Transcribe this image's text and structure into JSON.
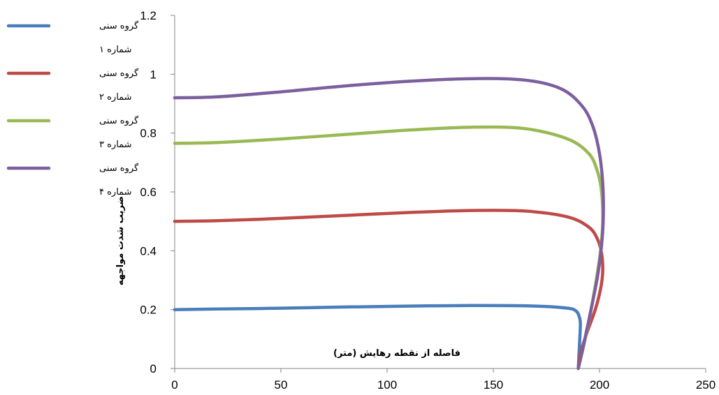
{
  "chart_data": {
    "type": "line",
    "xlabel": "فاصله از نقطه رهایش (متر)",
    "ylabel": "ضریب شدت مواجهه",
    "xlim": [
      0,
      250
    ],
    "ylim": [
      0,
      1.2
    ],
    "x_ticks": [
      0,
      50,
      100,
      150,
      200,
      250
    ],
    "y_ticks": [
      0,
      0.2,
      0.4,
      0.6,
      0.8,
      1,
      1.2
    ],
    "y_tick_labels": [
      "0",
      "0.2",
      "0.4",
      "0.6",
      "0.8",
      "1",
      "1.2"
    ],
    "legend_position": "left",
    "grid": false,
    "series": [
      {
        "name": "گروه سنی شماره ۱",
        "name_lines": [
          "گروه سنی",
          "شماره ۱"
        ],
        "color": "#4a7ebb",
        "x": [
          0,
          20,
          50,
          80,
          110,
          140,
          170,
          185,
          189,
          190.5,
          191,
          190.5,
          190
        ],
        "y": [
          0.2,
          0.202,
          0.205,
          0.209,
          0.212,
          0.214,
          0.212,
          0.205,
          0.195,
          0.175,
          0.15,
          0.07,
          0
        ]
      },
      {
        "name": "گروه سنی شماره ۲",
        "name_lines": [
          "گروه سنی",
          "شماره ۲"
        ],
        "color": "#be4b48",
        "x": [
          0,
          20,
          50,
          80,
          110,
          140,
          165,
          185,
          195,
          199,
          201,
          201.5,
          200.5,
          198,
          194,
          191,
          190
        ],
        "y": [
          0.5,
          0.502,
          0.51,
          0.52,
          0.53,
          0.537,
          0.535,
          0.515,
          0.48,
          0.44,
          0.39,
          0.33,
          0.27,
          0.2,
          0.12,
          0.05,
          0
        ]
      },
      {
        "name": "گروه سنی شماره ۳",
        "name_lines": [
          "گروه سنی",
          "شماره ۳"
        ],
        "color": "#98b954",
        "x": [
          0,
          20,
          50,
          80,
          110,
          140,
          165,
          185,
          195,
          199,
          201,
          201.5,
          200.5,
          198,
          195,
          192,
          190
        ],
        "y": [
          0.765,
          0.768,
          0.78,
          0.795,
          0.81,
          0.82,
          0.815,
          0.78,
          0.73,
          0.67,
          0.6,
          0.5,
          0.4,
          0.28,
          0.16,
          0.06,
          0
        ]
      },
      {
        "name": "گروه سنی شماره ۴",
        "name_lines": [
          "گروه سنی",
          "شماره ۴"
        ],
        "color": "#7d5fa0",
        "x": [
          0,
          20,
          50,
          80,
          110,
          140,
          165,
          182,
          192,
          197,
          200,
          201.5,
          201.8,
          201,
          199,
          196,
          192.5,
          190
        ],
        "y": [
          0.92,
          0.923,
          0.94,
          0.96,
          0.976,
          0.985,
          0.98,
          0.95,
          0.89,
          0.82,
          0.73,
          0.63,
          0.52,
          0.42,
          0.31,
          0.2,
          0.08,
          0
        ]
      }
    ]
  }
}
